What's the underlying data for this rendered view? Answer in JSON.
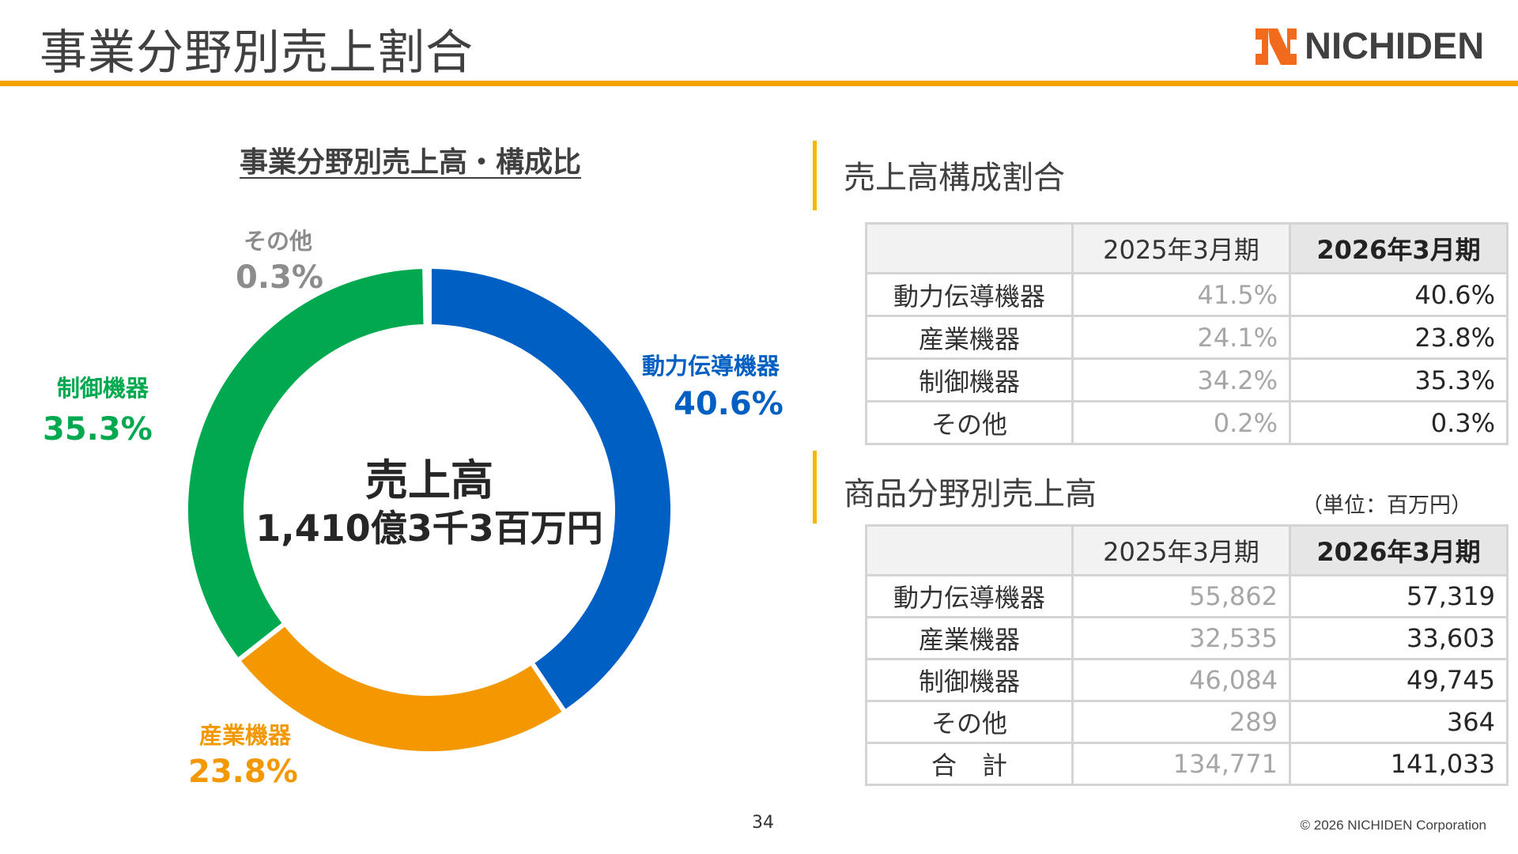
{
  "page_title": "事業分野別売上割合",
  "logo_text": "NICHIDEN",
  "colors": {
    "accent": "#f5a300",
    "power": "#005fc2",
    "industrial": "#f39800",
    "control": "#00a94f",
    "other": "#c8c8c8",
    "other_label": "#8c8c8c"
  },
  "chart_data": {
    "type": "pie",
    "variant": "donut",
    "title": "事業分野別売上高・構成比",
    "center_title": "売上高",
    "center_value": "1,410億3千3百万円",
    "slices": [
      {
        "name": "動力伝導機器",
        "value": 40.6,
        "label": "40.6%",
        "color": "#005fc2"
      },
      {
        "name": "産業機器",
        "value": 23.8,
        "label": "23.8%",
        "color": "#f39800"
      },
      {
        "name": "制御機器",
        "value": 35.3,
        "label": "35.3%",
        "color": "#00a94f"
      },
      {
        "name": "その他",
        "value": 0.3,
        "label": "0.3%",
        "color": "#c8c8c8"
      }
    ]
  },
  "composition": {
    "title": "売上高構成割合",
    "headers": [
      "",
      "2025年3月期",
      "2026年3月期"
    ],
    "rows": [
      {
        "label": "動力伝導機器",
        "prev": "41.5%",
        "cur": "40.6%"
      },
      {
        "label": "産業機器",
        "prev": "24.1%",
        "cur": "23.8%"
      },
      {
        "label": "制御機器",
        "prev": "34.2%",
        "cur": "35.3%"
      },
      {
        "label": "その他",
        "prev": "0.2%",
        "cur": "0.3%"
      }
    ]
  },
  "sales": {
    "title": "商品分野別売上高",
    "unit": "（単位：百万円）",
    "headers": [
      "",
      "2025年3月期",
      "2026年3月期"
    ],
    "rows": [
      {
        "label": "動力伝導機器",
        "prev": "55,862",
        "cur": "57,319"
      },
      {
        "label": "産業機器",
        "prev": "32,535",
        "cur": "33,603"
      },
      {
        "label": "制御機器",
        "prev": "46,084",
        "cur": "49,745"
      },
      {
        "label": "その他",
        "prev": "289",
        "cur": "364"
      },
      {
        "label": "合　計",
        "prev": "134,771",
        "cur": "141,033"
      }
    ]
  },
  "footer": {
    "page_number": "34",
    "copyright": "© 2026 NICHIDEN Corporation"
  }
}
